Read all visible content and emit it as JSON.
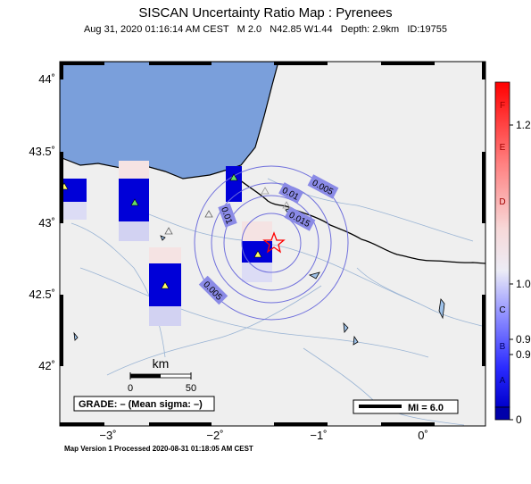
{
  "header": {
    "title": "SISCAN Uncertainty Ratio Map : Pyrenees",
    "subtitle": "Aug 31, 2020 01:16:14 AM CEST   M 2.0   N42.85 W1.44   Depth: 2.9km   ID:19755"
  },
  "map": {
    "lat_ticks": [
      "44˚",
      "43.5˚",
      "43˚",
      "42.5˚",
      "42˚"
    ],
    "lon_ticks": [
      "−3˚",
      "−2˚",
      "−1˚",
      "0˚"
    ],
    "contours": [
      "0.015",
      "0.01",
      "0.01",
      "0.005",
      "0.005"
    ],
    "scale_bar": {
      "unit": "km",
      "start": "0",
      "end": "50"
    },
    "grade_box": "GRADE: – (Mean sigma: –)",
    "mi_legend": "MI = 6.0",
    "colors": {
      "sea": "#7a9fdb",
      "land": "#efefef",
      "epicenter": "#ff0000"
    }
  },
  "colorbar": {
    "letters": [
      "F",
      "E",
      "D",
      "C",
      "B",
      "A"
    ],
    "values": [
      "1.2",
      "1.0",
      "0.9",
      "0.9",
      "0"
    ]
  },
  "footer": {
    "text": "Map Version 1 Processed 2020-08-31 01:18:05 AM CEST"
  }
}
